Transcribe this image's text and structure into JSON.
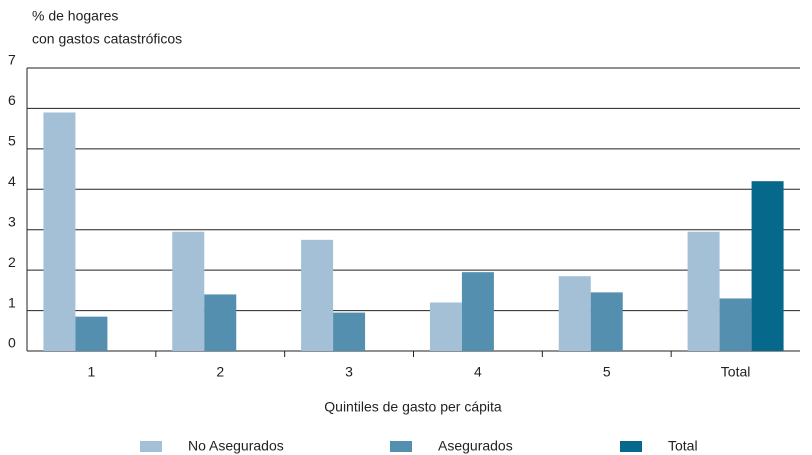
{
  "chart_data": {
    "type": "bar",
    "y_label": [
      "% de hogares",
      "con gastos catastróficos"
    ],
    "x_label": "Quintiles de gasto per cápita",
    "categories": [
      "1",
      "2",
      "3",
      "4",
      "5",
      "Total"
    ],
    "series": [
      {
        "name": "No Asegurados",
        "color": "#a3c0d6",
        "values": [
          5.9,
          2.95,
          2.75,
          1.2,
          1.85,
          2.95
        ]
      },
      {
        "name": "Asegurados",
        "color": "#558fb0",
        "values": [
          0.85,
          1.4,
          0.95,
          1.95,
          1.45,
          1.3
        ]
      },
      {
        "name": "Total",
        "color": "#06688a",
        "values": [
          null,
          null,
          null,
          null,
          null,
          4.2
        ]
      }
    ],
    "ylim": [
      0,
      7
    ],
    "yticks": [
      0,
      1,
      2,
      3,
      4,
      5,
      6,
      7
    ],
    "grid": true,
    "legend": "bottom"
  }
}
